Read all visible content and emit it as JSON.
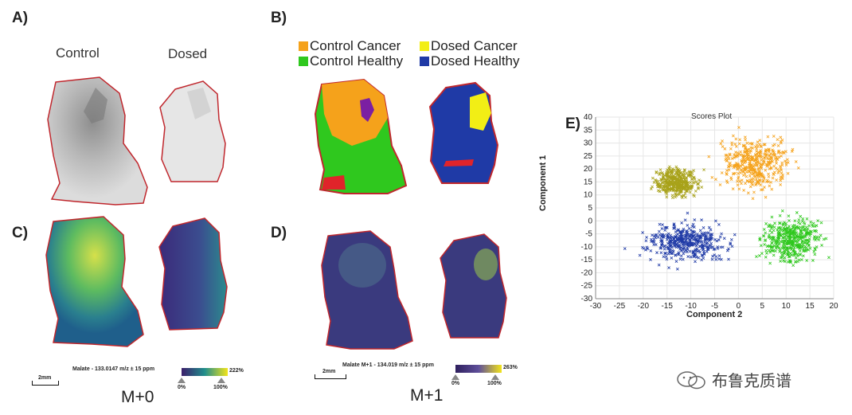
{
  "panels": {
    "a": {
      "label": "A)",
      "left_title": "Control",
      "right_title": "Dosed"
    },
    "b": {
      "label": "B)",
      "legend": [
        {
          "name": "Control Cancer",
          "color": "#f5a21b"
        },
        {
          "name": "Dosed Cancer",
          "color": "#f2ee15"
        },
        {
          "name": "Control Healthy",
          "color": "#2fc81e"
        },
        {
          "name": "Dosed Healthy",
          "color": "#1f3aa6"
        }
      ]
    },
    "c": {
      "label": "C)",
      "colorbar_title": "Malate - 133.0147 m/z ± 15 ppm",
      "max_pct": "222%",
      "tick0": "0%",
      "tick100": "100%",
      "scale": "2mm",
      "caption": "M+0"
    },
    "d": {
      "label": "D)",
      "colorbar_title": "Malate M+1 - 134.019 m/z ± 15 ppm",
      "max_pct": "263%",
      "tick0": "0%",
      "tick100": "100%",
      "scale": "2mm",
      "caption": "M+1"
    },
    "e": {
      "label": "E)"
    }
  },
  "colors": {
    "outline": "#c0272d",
    "viridis_low": "#3b1e6b",
    "viridis_mid": "#218e8c",
    "viridis_high": "#f2e41b"
  },
  "watermark": {
    "text": "布鲁克质谱",
    "icon": "wechat-icon"
  },
  "chart_data": {
    "type": "scatter",
    "title": "Scores Plot",
    "xlabel": "Component 2",
    "ylabel": "Component 1",
    "xlim": [
      -30,
      20
    ],
    "ylim": [
      -30,
      40
    ],
    "xticks": [
      -30,
      -25,
      -20,
      -15,
      -10,
      -5,
      0,
      5,
      10,
      15,
      20
    ],
    "yticks": [
      -30,
      -25,
      -20,
      -15,
      -10,
      -5,
      0,
      5,
      10,
      15,
      20,
      25,
      30,
      35,
      40
    ],
    "grid": true,
    "series": [
      {
        "color": "#f5a21b",
        "center": [
          4,
          22
        ],
        "spread": [
          7,
          9
        ]
      },
      {
        "color": "#a8a21a",
        "center": [
          -13,
          15
        ],
        "spread": [
          4,
          5
        ]
      },
      {
        "color": "#1f3aa6",
        "center": [
          -11,
          -8
        ],
        "spread": [
          8,
          7
        ]
      },
      {
        "color": "#2fc81e",
        "center": [
          11,
          -7
        ],
        "spread": [
          6,
          8
        ]
      }
    ]
  }
}
